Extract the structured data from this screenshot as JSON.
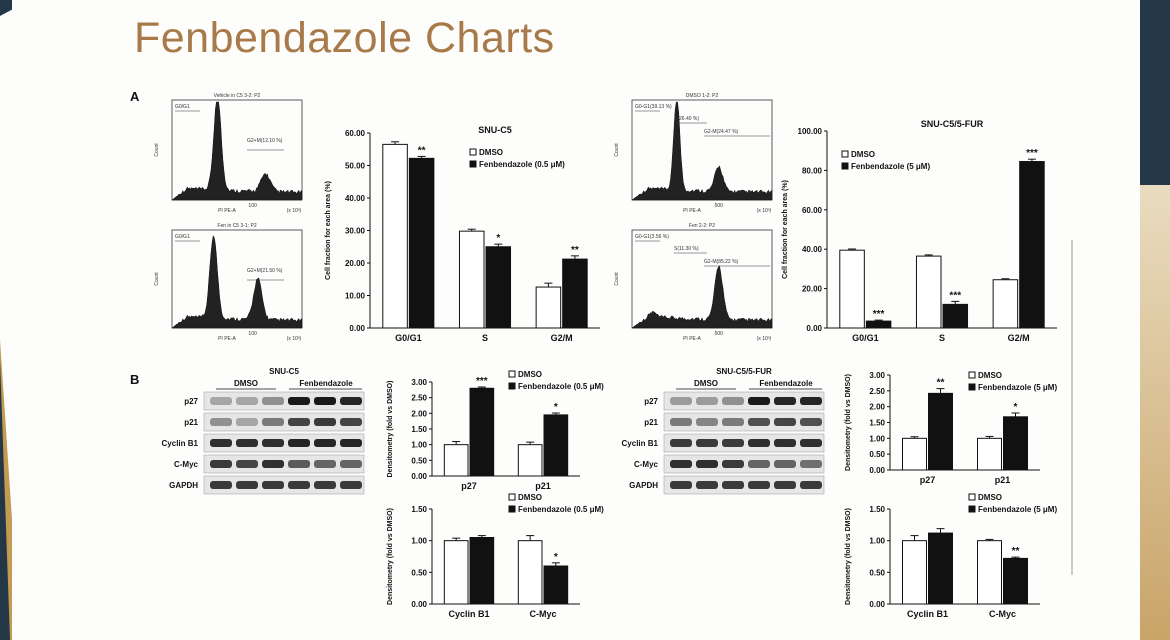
{
  "title": "Fenbendazole Charts",
  "panels": {
    "a": "A",
    "b": "B"
  },
  "flow": {
    "h1": {
      "title": "Vehicle in C5 3-2: P2",
      "gate1": "G0/G1",
      "gate2": "G2+M(12.10 %)",
      "xlab": "PI PE-A",
      "xunit": "(x 10³)",
      "ylab": "Count",
      "xtick": "100"
    },
    "h2": {
      "title": "Fen in C5 3-1: P2",
      "gate1": "G0/G1",
      "gate2": "G2+M(21.50 %)",
      "xlab": "PI PE-A",
      "xunit": "(x 10³)",
      "ylab": "Count",
      "xtick": "100"
    },
    "h3": {
      "title": "DMSO 1-2: P2",
      "gate1": "G0-G1(39.13 %)",
      "gate2": "S(26.40 %)",
      "gate3": "G2-M(24.47 %)",
      "xlab": "PI PE-A",
      "xunit": "(x 10³)",
      "ylab": "Count",
      "xtick": "500"
    },
    "h4": {
      "title": "Fen 2-2: P2",
      "gate1": "G0-G1(3.56 %)",
      "gate2": "S(11.30 %)",
      "gate3": "G2-M(85.22 %)",
      "xlab": "PI PE-A",
      "xunit": "(x 10³)",
      "ylab": "Count",
      "xtick": "500"
    }
  },
  "western": {
    "w1": {
      "title": "SNU-C5",
      "group1": "DMSO",
      "group2": "Fenbendazole",
      "rows": [
        "p27",
        "p21",
        "Cyclin B1",
        "C-Myc",
        "GAPDH"
      ]
    },
    "w2": {
      "title": "SNU-C5/5-FUR",
      "group1": "DMSO",
      "group2": "Fenbendazole",
      "rows": [
        "p27",
        "p21",
        "Cyclin B1",
        "C-Myc",
        "GAPDH"
      ]
    }
  },
  "colors": {
    "title": "#a87a4a",
    "dark": "#233746",
    "gold": "#c39a52"
  },
  "chart_data": [
    {
      "id": "c1",
      "type": "bar",
      "title": "SNU-C5",
      "ylabel": "Cell fraction for each area (%)",
      "categories": [
        "G0/G1",
        "S",
        "G2/M"
      ],
      "series": [
        {
          "name": "DMSO",
          "values": [
            56.5,
            29.8,
            12.6
          ],
          "errors": [
            0.8,
            0.6,
            1.2
          ]
        },
        {
          "name": "Fenbendazole (0.5 μM)",
          "values": [
            52.2,
            25.0,
            21.2
          ],
          "errors": [
            0.6,
            0.8,
            1.0
          ]
        }
      ],
      "stars": [
        "**",
        "*",
        "**"
      ],
      "ylim": [
        0,
        60
      ],
      "ticks": [
        "0.00",
        "10.00",
        "20.00",
        "30.00",
        "40.00",
        "50.00",
        "60.00"
      ]
    },
    {
      "id": "c2",
      "type": "bar",
      "title": "SNU-C5/5-FUR",
      "ylabel": "Cell fraction for each area (%)",
      "categories": [
        "G0/G1",
        "S",
        "G2/M"
      ],
      "series": [
        {
          "name": "DMSO",
          "values": [
            39.5,
            36.5,
            24.5
          ],
          "errors": [
            0.6,
            0.6,
            0.5
          ]
        },
        {
          "name": "Fenbendazole (5 μM)",
          "values": [
            3.5,
            12.0,
            84.5
          ],
          "errors": [
            0.5,
            1.5,
            1.2
          ]
        }
      ],
      "stars": [
        "***",
        "***",
        "***"
      ],
      "ylim": [
        0,
        100
      ],
      "ticks": [
        "0.00",
        "20.00",
        "40.00",
        "60.00",
        "80.00",
        "100.00"
      ]
    },
    {
      "id": "c3",
      "type": "bar",
      "ylabel": "Densitometry (fold vs DMSO)",
      "categories": [
        "p27",
        "p21"
      ],
      "series": [
        {
          "name": "DMSO",
          "values": [
            1.0,
            1.0
          ],
          "errors": [
            0.1,
            0.08
          ]
        },
        {
          "name": "Fenbendazole (0.5 μM)",
          "values": [
            2.8,
            1.95
          ],
          "errors": [
            0.04,
            0.06
          ]
        }
      ],
      "stars": [
        "***",
        "*"
      ],
      "ylim": [
        0,
        3
      ],
      "ticks": [
        "0.00",
        "0.50",
        "1.00",
        "1.50",
        "2.00",
        "2.50",
        "3.00"
      ]
    },
    {
      "id": "c4",
      "type": "bar",
      "ylabel": "Densitometry (fold vs DMSO)",
      "categories": [
        "Cyclin B1",
        "C-Myc"
      ],
      "series": [
        {
          "name": "DMSO",
          "values": [
            1.0,
            1.0
          ],
          "errors": [
            0.04,
            0.08
          ]
        },
        {
          "name": "Fenbendazole (0.5 μM)",
          "values": [
            1.05,
            0.6
          ],
          "errors": [
            0.03,
            0.05
          ]
        }
      ],
      "stars": [
        "",
        "*"
      ],
      "ylim": [
        0,
        1.5
      ],
      "ticks": [
        "0.00",
        "0.50",
        "1.00",
        "1.50"
      ]
    },
    {
      "id": "c5",
      "type": "bar",
      "ylabel": "Densitometry (fold vs DMSO)",
      "categories": [
        "p27",
        "p21"
      ],
      "series": [
        {
          "name": "DMSO",
          "values": [
            1.0,
            1.0
          ],
          "errors": [
            0.05,
            0.06
          ]
        },
        {
          "name": "Fenbendazole (5 μM)",
          "values": [
            2.42,
            1.68
          ],
          "errors": [
            0.15,
            0.12
          ]
        }
      ],
      "stars": [
        "**",
        "*"
      ],
      "ylim": [
        0,
        3
      ],
      "ticks": [
        "0.00",
        "0.50",
        "1.00",
        "1.50",
        "2.00",
        "2.50",
        "3.00"
      ]
    },
    {
      "id": "c6",
      "type": "bar",
      "ylabel": "Densitometry (fold vs DMSO)",
      "categories": [
        "Cyclin B1",
        "C-Myc"
      ],
      "series": [
        {
          "name": "DMSO",
          "values": [
            1.0,
            1.0
          ],
          "errors": [
            0.08,
            0.02
          ]
        },
        {
          "name": "Fenbendazole (5 μM)",
          "values": [
            1.12,
            0.72
          ],
          "errors": [
            0.07,
            0.02
          ]
        }
      ],
      "stars": [
        "",
        "**"
      ],
      "ylim": [
        0,
        1.5
      ],
      "ticks": [
        "0.00",
        "0.50",
        "1.00",
        "1.50"
      ]
    }
  ]
}
